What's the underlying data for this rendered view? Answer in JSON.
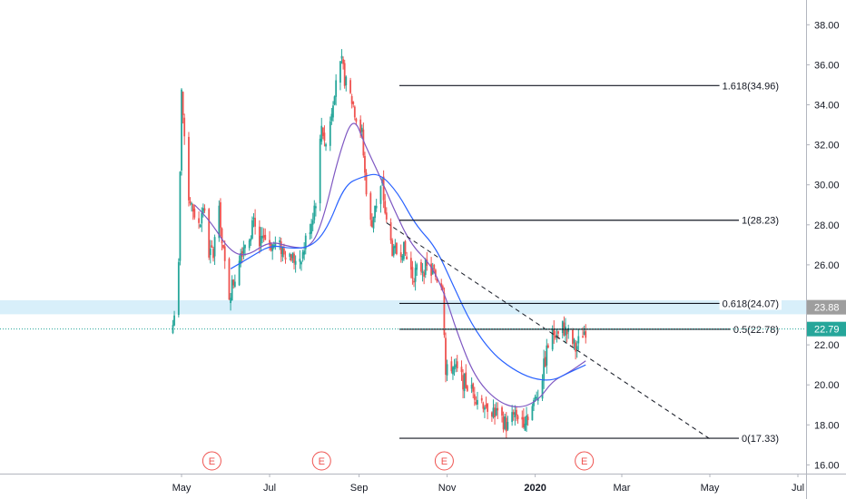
{
  "chart_data": {
    "type": "candlestick",
    "title": "",
    "x_ticks": [
      "May",
      "Jul",
      "Sep",
      "Nov",
      "2020",
      "Mar",
      "May",
      "Jul"
    ],
    "y_ticks": [
      "16.00",
      "18.00",
      "20.00",
      "22.00",
      "24.00",
      "26.00",
      "28.00",
      "30.00",
      "32.00",
      "34.00",
      "36.00",
      "38.00"
    ],
    "ylim": [
      15.5,
      39.0
    ],
    "last_price": "22.79",
    "highlight_level": "23.88",
    "colors": {
      "up": "#26a69a",
      "down": "#ef5350",
      "ma_fast": "#7e57c2",
      "ma_slow": "#2962ff",
      "highlight_band": "#a9dcf5",
      "last_price_tag": "#26a69a",
      "level_tag": "#9e9e9e",
      "earnings": "#ef5350"
    },
    "fib_levels": [
      {
        "label": "1.618(34.96)",
        "value": 34.96
      },
      {
        "label": "1(28.23)",
        "value": 28.23
      },
      {
        "label": "0.618(24.07)",
        "value": 24.07
      },
      {
        "label": "0.5(22.78)",
        "value": 22.78
      },
      {
        "label": "0(17.33)",
        "value": 17.33
      }
    ],
    "earnings_markers": [
      {
        "label": "E",
        "date": "2019-05-22"
      },
      {
        "label": "E",
        "date": "2019-08-06"
      },
      {
        "label": "E",
        "date": "2019-10-30"
      },
      {
        "label": "E",
        "date": "2020-02-04"
      }
    ],
    "trendline": {
      "from": {
        "date": "2019-09-20",
        "price": 28.1
      },
      "to": {
        "date": "2020-05-01",
        "price": 17.3
      }
    },
    "price_keyframes": [
      [
        "2019-04-25",
        23.0
      ],
      [
        "2019-04-29",
        25.8
      ],
      [
        "2019-05-01",
        35.0
      ],
      [
        "2019-05-03",
        32.0
      ],
      [
        "2019-05-06",
        29.5
      ],
      [
        "2019-05-09",
        28.8
      ],
      [
        "2019-05-13",
        28.0
      ],
      [
        "2019-05-16",
        29.0
      ],
      [
        "2019-05-20",
        26.6
      ],
      [
        "2019-05-23",
        26.5
      ],
      [
        "2019-05-27",
        29.4
      ],
      [
        "2019-05-29",
        27.0
      ],
      [
        "2019-06-03",
        24.5
      ],
      [
        "2019-06-07",
        25.4
      ],
      [
        "2019-06-10",
        26.5
      ],
      [
        "2019-06-14",
        27.2
      ],
      [
        "2019-06-20",
        28.0
      ],
      [
        "2019-06-24",
        27.0
      ],
      [
        "2019-06-28",
        27.3
      ],
      [
        "2019-07-03",
        27.0
      ],
      [
        "2019-07-10",
        26.8
      ],
      [
        "2019-07-17",
        26.4
      ],
      [
        "2019-07-22",
        25.9
      ],
      [
        "2019-07-26",
        27.2
      ],
      [
        "2019-07-30",
        28.2
      ],
      [
        "2019-08-02",
        29.3
      ],
      [
        "2019-08-06",
        33.0
      ],
      [
        "2019-08-09",
        32.0
      ],
      [
        "2019-08-13",
        33.8
      ],
      [
        "2019-08-16",
        35.4
      ],
      [
        "2019-08-20",
        36.0
      ],
      [
        "2019-08-23",
        35.0
      ],
      [
        "2019-08-28",
        34.0
      ],
      [
        "2019-09-03",
        32.5
      ],
      [
        "2019-09-05",
        30.5
      ],
      [
        "2019-09-09",
        28.0
      ],
      [
        "2019-09-13",
        29.0
      ],
      [
        "2019-09-17",
        30.0
      ],
      [
        "2019-09-20",
        28.0
      ],
      [
        "2019-09-25",
        26.5
      ],
      [
        "2019-10-01",
        26.9
      ],
      [
        "2019-10-08",
        25.5
      ],
      [
        "2019-10-15",
        25.9
      ],
      [
        "2019-10-22",
        25.6
      ],
      [
        "2019-10-29",
        25.1
      ],
      [
        "2019-10-31",
        20.5
      ],
      [
        "2019-11-04",
        21.0
      ],
      [
        "2019-11-11",
        20.3
      ],
      [
        "2019-11-18",
        19.7
      ],
      [
        "2019-11-25",
        19.2
      ],
      [
        "2019-12-02",
        18.8
      ],
      [
        "2019-12-09",
        18.3
      ],
      [
        "2019-12-13",
        17.9
      ],
      [
        "2019-12-18",
        18.6
      ],
      [
        "2019-12-24",
        18.3
      ],
      [
        "2019-12-31",
        19.0
      ],
      [
        "2020-01-06",
        20.5
      ],
      [
        "2020-01-10",
        22.0
      ],
      [
        "2020-01-15",
        22.8
      ],
      [
        "2020-01-20",
        22.9
      ],
      [
        "2020-01-24",
        22.5
      ],
      [
        "2020-01-29",
        21.8
      ],
      [
        "2020-02-03",
        22.6
      ],
      [
        "2020-02-05",
        22.8
      ]
    ],
    "ma_fast_keyframes": [
      [
        "2019-05-10",
        29.0
      ],
      [
        "2019-05-20",
        28.3
      ],
      [
        "2019-06-03",
        26.7
      ],
      [
        "2019-06-15",
        26.4
      ],
      [
        "2019-07-01",
        27.2
      ],
      [
        "2019-07-15",
        26.9
      ],
      [
        "2019-07-29",
        26.8
      ],
      [
        "2019-08-07",
        28.2
      ],
      [
        "2019-08-18",
        31.5
      ],
      [
        "2019-08-28",
        33.5
      ],
      [
        "2019-09-05",
        32.0
      ],
      [
        "2019-09-15",
        30.5
      ],
      [
        "2019-09-25",
        28.8
      ],
      [
        "2019-10-07",
        27.0
      ],
      [
        "2019-10-21",
        26.0
      ],
      [
        "2019-10-31",
        24.4
      ],
      [
        "2019-11-08",
        22.6
      ],
      [
        "2019-11-20",
        20.4
      ],
      [
        "2019-12-05",
        19.2
      ],
      [
        "2019-12-20",
        18.8
      ],
      [
        "2020-01-03",
        19.2
      ],
      [
        "2020-01-13",
        20.2
      ],
      [
        "2020-01-24",
        20.6
      ],
      [
        "2020-02-05",
        21.2
      ]
    ],
    "ma_slow_keyframes": [
      [
        "2019-06-04",
        25.8
      ],
      [
        "2019-06-18",
        26.4
      ],
      [
        "2019-07-02",
        27.0
      ],
      [
        "2019-07-16",
        26.8
      ],
      [
        "2019-07-30",
        26.9
      ],
      [
        "2019-08-10",
        27.8
      ],
      [
        "2019-08-22",
        30.0
      ],
      [
        "2019-09-03",
        30.4
      ],
      [
        "2019-09-15",
        30.6
      ],
      [
        "2019-09-28",
        29.6
      ],
      [
        "2019-10-10",
        28.0
      ],
      [
        "2019-10-24",
        26.9
      ],
      [
        "2019-11-05",
        25.0
      ],
      [
        "2019-11-18",
        23.0
      ],
      [
        "2019-12-02",
        21.6
      ],
      [
        "2019-12-16",
        20.8
      ],
      [
        "2019-12-30",
        20.3
      ],
      [
        "2020-01-13",
        20.2
      ],
      [
        "2020-01-24",
        20.6
      ],
      [
        "2020-02-05",
        21.0
      ]
    ]
  }
}
